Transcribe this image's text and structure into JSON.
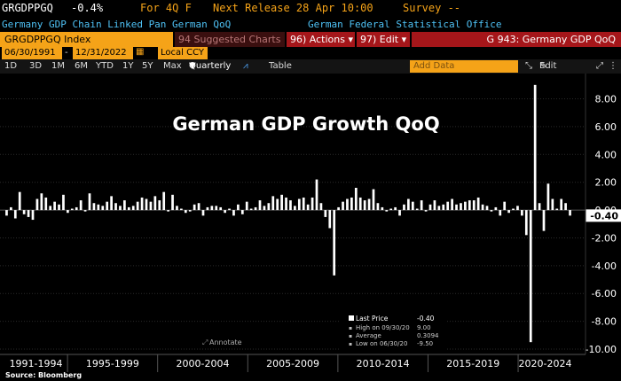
{
  "header": {
    "ticker": "GRGDPPGQ",
    "value": "-0.4%",
    "period": "For 4Q F",
    "next_release": "Next Release 28 Apr 10:00",
    "survey": "Survey --",
    "description": "Germany GDP Chain Linked Pan German QoQ",
    "source_agency": "German Federal Statistical Office"
  },
  "toolbar": {
    "index_label": "GRGDPPGQ Index",
    "suggested_charts": "94 Suggested Charts",
    "actions": "96) Actions",
    "edit": "97) Edit",
    "page_title": "G 943: Germany GDP QoQ"
  },
  "date_range": {
    "start": "06/30/1991",
    "end": "12/31/2022"
  },
  "controls": {
    "periods": [
      "1D",
      "3D",
      "1M",
      "6M",
      "YTD",
      "1Y",
      "5Y",
      "Max"
    ],
    "frequency": "Quarterly",
    "table": "Table",
    "currency": "Local CCY",
    "add_data": "Add Data",
    "edit_chart": "Edit Chart"
  },
  "annotate_label": "Annotate",
  "footer_source": "Source: Bloomberg",
  "colors": {
    "accent": "#f5a318",
    "red": "#a5161a",
    "blue": "#1f4ea3",
    "bars": "#ffffff"
  },
  "chart_data": {
    "type": "bar",
    "title": "German GDP Growth QoQ",
    "ylim": [
      -10,
      9.5
    ],
    "yticks": [
      8.0,
      6.0,
      4.0,
      2.0,
      0.0,
      -2.0,
      -4.0,
      -6.0,
      -8.0,
      -10.0
    ],
    "ytick_labels": [
      "8.00",
      "6.00",
      "4.00",
      "2.00",
      "0.00",
      "-2.00",
      "-4.00",
      "-6.00",
      "-8.00",
      "-10.00"
    ],
    "last_value_label": "-0.40",
    "x_period_labels": [
      "1991-1994",
      "1995-1999",
      "2000-2004",
      "2005-2009",
      "2010-2014",
      "2015-2019",
      "2020-2024"
    ],
    "x_start_year": 1991.5,
    "x_end_year": 2023.0,
    "legend": {
      "last_price_label": "Last Price",
      "last_price": "-0.40",
      "high_label": "High on 09/30/20",
      "high": "9.00",
      "average_label": "Average",
      "average": "0.3094",
      "low_label": "Low on 06/30/20",
      "low": "-9.50"
    },
    "series": [
      {
        "name": "GRGDPPGQ",
        "start": "1991Q2",
        "values": [
          -0.4,
          0.2,
          -0.6,
          1.3,
          -0.3,
          -0.5,
          -0.7,
          0.8,
          1.2,
          0.9,
          0.3,
          0.6,
          0.4,
          1.1,
          -0.2,
          0.1,
          0.2,
          0.7,
          -0.1,
          1.2,
          0.5,
          0.4,
          0.3,
          0.6,
          1.0,
          0.5,
          0.3,
          0.7,
          0.2,
          0.3,
          0.6,
          0.9,
          0.8,
          0.6,
          1.0,
          0.7,
          1.3,
          -0.1,
          1.1,
          0.3,
          0.1,
          -0.2,
          -0.1,
          0.4,
          0.5,
          -0.4,
          0.2,
          0.3,
          0.3,
          0.2,
          -0.2,
          0.1,
          -0.4,
          0.4,
          -0.3,
          0.6,
          0.1,
          0.2,
          0.7,
          0.3,
          0.5,
          1.0,
          0.8,
          1.1,
          0.9,
          0.7,
          0.3,
          0.8,
          0.9,
          0.4,
          0.9,
          2.2,
          0.5,
          -0.5,
          -1.3,
          -4.7,
          0.2,
          0.6,
          0.8,
          0.9,
          1.6,
          0.9,
          0.7,
          0.8,
          1.5,
          0.5,
          0.2,
          -0.1,
          0.1,
          0.2,
          -0.4,
          0.4,
          0.8,
          0.6,
          0.1,
          0.7,
          -0.1,
          0.4,
          0.7,
          0.3,
          0.4,
          0.6,
          0.8,
          0.4,
          0.5,
          0.6,
          0.7,
          0.7,
          0.9,
          0.4,
          0.3,
          -0.1,
          0.2,
          -0.4,
          0.6,
          -0.2,
          0.1,
          0.3,
          -0.4,
          -1.8,
          -9.5,
          9.0,
          0.5,
          -1.5,
          1.9,
          0.8,
          0.1,
          0.8,
          0.5,
          -0.4
        ]
      }
    ]
  }
}
